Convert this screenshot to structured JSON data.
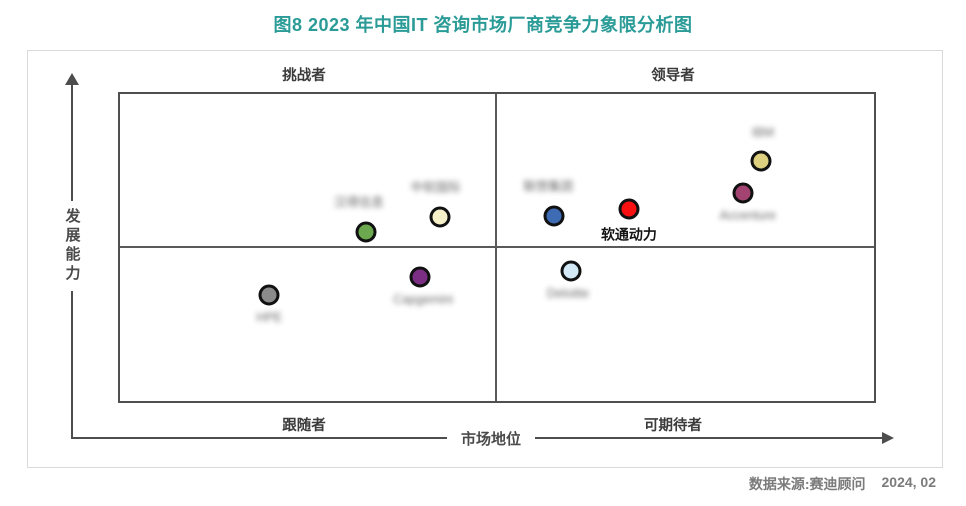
{
  "title": "图8  2023 年中国IT 咨询市场厂商竞争力象限分析图",
  "quadrants": {
    "top_left": "挑战者",
    "top_right": "领导者",
    "bottom_left": "跟随者",
    "bottom_right": "可期待者"
  },
  "axes": {
    "y_label": "发展能力",
    "x_label": "市场地位"
  },
  "footer": {
    "source": "数据来源:赛迪顾问",
    "date": "2024, 02"
  },
  "colors": {
    "title_teal": "#2a9b97",
    "axis_gray": "#4a4a4a",
    "frame_gray": "#d9d9d9",
    "highlight_red": "#fa1010"
  },
  "chart_data": {
    "type": "scatter",
    "title": "图8 2023 年中国IT 咨询市场厂商竞争力象限分析图",
    "xlabel": "市场地位",
    "ylabel": "发展能力",
    "x_range": [
      0,
      100
    ],
    "y_range": [
      0,
      100
    ],
    "grid": false,
    "legend": "none",
    "quadrant_labels": [
      "挑战者",
      "领导者",
      "跟随者",
      "可期待者"
    ],
    "points": [
      {
        "id": "green-vendor",
        "name": "汉得信息",
        "x": 32.6,
        "y": 55.0,
        "color": "#6ba84e",
        "label_pos": "above",
        "label_blurred": true,
        "label_dx": -7
      },
      {
        "id": "cream-vendor",
        "name": "中软国际",
        "x": 42.4,
        "y": 59.9,
        "color": "#f6f1c9",
        "label_pos": "above",
        "label_blurred": true,
        "label_dx": -4
      },
      {
        "id": "blue-vendor",
        "name": "联想集团",
        "x": 57.6,
        "y": 60.3,
        "color": "#3d6cb4",
        "label_pos": "above",
        "label_blurred": true,
        "label_dx": -6
      },
      {
        "id": "isoftstone",
        "name": "软通动力",
        "x": 67.5,
        "y": 62.5,
        "color": "#fa1010",
        "label_pos": "below",
        "label_blurred": false,
        "label_dx": 0
      },
      {
        "id": "ibm",
        "name": "IBM",
        "x": 85.0,
        "y": 78.2,
        "color": "#ddd17f",
        "label_pos": "above",
        "label_blurred": true,
        "label_dx": 2
      },
      {
        "id": "accenture",
        "name": "Accenture",
        "x": 82.6,
        "y": 67.8,
        "color": "#a34371",
        "label_pos": "below",
        "label_blurred": true,
        "label_dx": 5
      },
      {
        "id": "deloitte",
        "name": "Deloitte",
        "x": 59.8,
        "y": 42.3,
        "color": "#d3eaf6",
        "label_pos": "below",
        "label_blurred": true,
        "label_dx": -3
      },
      {
        "id": "capgemini",
        "name": "Capgemini",
        "x": 39.8,
        "y": 40.4,
        "color": "#7c2e84",
        "label_pos": "below",
        "label_blurred": true,
        "label_dx": 3
      },
      {
        "id": "hpe",
        "name": "HPE",
        "x": 19.8,
        "y": 34.5,
        "color": "#8b8b8b",
        "label_pos": "below",
        "label_blurred": true,
        "label_dx": 0
      }
    ]
  }
}
